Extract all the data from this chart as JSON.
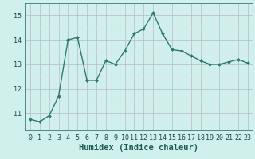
{
  "x": [
    0,
    1,
    2,
    3,
    4,
    5,
    6,
    7,
    8,
    9,
    10,
    11,
    12,
    13,
    14,
    15,
    16,
    17,
    18,
    19,
    20,
    21,
    22,
    23
  ],
  "y": [
    10.75,
    10.65,
    10.9,
    11.7,
    14.0,
    14.1,
    12.35,
    12.35,
    13.15,
    13.0,
    13.55,
    14.25,
    14.45,
    15.1,
    14.25,
    13.6,
    13.55,
    13.35,
    13.15,
    13.0,
    13.0,
    13.1,
    13.2,
    13.05
  ],
  "line_color": "#2d7a6e",
  "marker": "D",
  "marker_size": 2.0,
  "linewidth": 1.0,
  "bg_color": "#cff0eb",
  "xlabel": "Humidex (Indice chaleur)",
  "xlabel_fontsize": 7.5,
  "xlim": [
    -0.5,
    23.5
  ],
  "ylim": [
    10.3,
    15.5
  ],
  "yticks": [
    11,
    12,
    13,
    14,
    15
  ],
  "xticks": [
    0,
    1,
    2,
    3,
    4,
    5,
    6,
    7,
    8,
    9,
    10,
    11,
    12,
    13,
    14,
    15,
    16,
    17,
    18,
    19,
    20,
    21,
    22,
    23
  ],
  "tick_fontsize": 6.0,
  "major_grid_color": "#b8b8c8",
  "minor_grid_color": "#dde8e6"
}
